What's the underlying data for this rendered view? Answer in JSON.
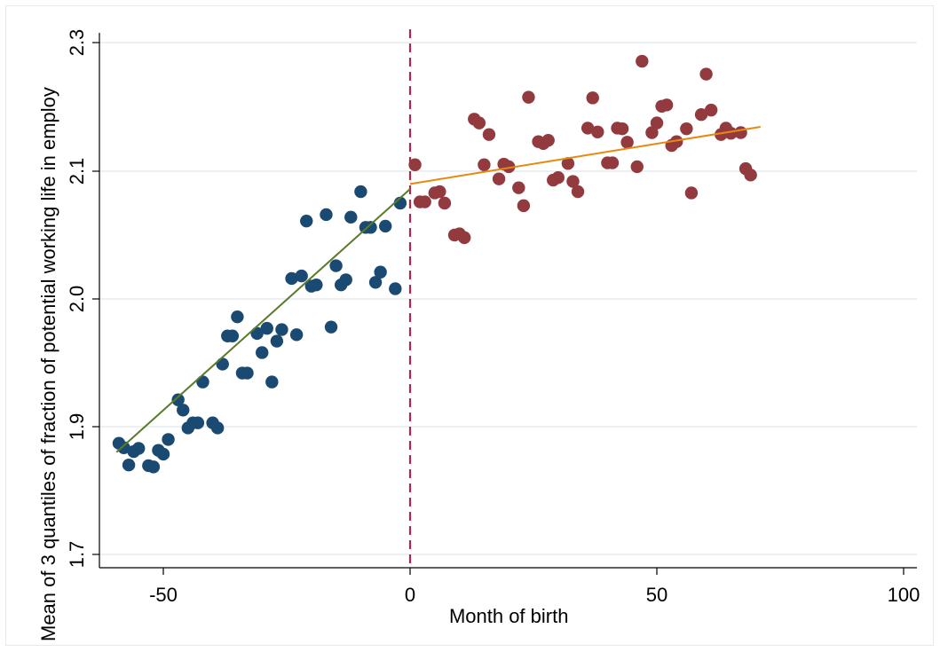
{
  "chart_data": {
    "type": "scatter",
    "title": "",
    "xlabel": "Month of birth",
    "ylabel": "Mean of 3 quantiles of fraction of potential working life in employ",
    "xlim": [
      -63,
      102
    ],
    "ylim": [
      1.69,
      2.3
    ],
    "x_ticks": [
      -50,
      0,
      50,
      100
    ],
    "y_ticks": [
      1.7,
      1.9,
      2.0,
      2.1,
      2.3
    ],
    "x_tick_labels": [
      "-50",
      "0",
      "50",
      "100"
    ],
    "y_tick_labels": [
      "1.7",
      "1.9",
      "2.0",
      "2.1",
      "2.3"
    ],
    "grid": true,
    "cutoff": 0,
    "colors": {
      "left_points": "#1a4a72",
      "right_points": "#923a3e",
      "left_fit": "#5a7a2c",
      "right_fit": "#e8890f",
      "cutoff_line": "#b0264c",
      "grid": "#e4ecf0"
    },
    "series": [
      {
        "points": [
          [
            -59,
            1.874
          ],
          [
            -58,
            1.867
          ],
          [
            -57,
            1.84
          ],
          [
            -56,
            1.861
          ],
          [
            -55,
            1.866
          ],
          [
            -53,
            1.839
          ],
          [
            -52,
            1.837
          ],
          [
            -51,
            1.863
          ],
          [
            -50,
            1.857
          ],
          [
            -49,
            1.88
          ],
          [
            -47,
            1.921
          ],
          [
            -46,
            1.913
          ],
          [
            -45,
            1.898
          ],
          [
            -44,
            1.903
          ],
          [
            -43,
            1.903
          ],
          [
            -42,
            1.935
          ],
          [
            -40,
            1.903
          ],
          [
            -39,
            1.898
          ],
          [
            -38,
            1.949
          ],
          [
            -37,
            1.971
          ],
          [
            -36,
            1.971
          ],
          [
            -35,
            1.986
          ],
          [
            -34,
            1.942
          ],
          [
            -33,
            1.942
          ],
          [
            -31,
            1.973
          ],
          [
            -30,
            1.958
          ],
          [
            -29,
            1.977
          ],
          [
            -28,
            1.935
          ],
          [
            -27,
            1.967
          ],
          [
            -26,
            1.976
          ],
          [
            -24,
            2.016
          ],
          [
            -23,
            1.972
          ],
          [
            -22,
            2.018
          ],
          [
            -21,
            2.061
          ],
          [
            -20,
            2.01
          ],
          [
            -19,
            2.011
          ],
          [
            -17,
            2.066
          ],
          [
            -16,
            1.978
          ],
          [
            -15,
            2.026
          ],
          [
            -14,
            2.011
          ],
          [
            -13,
            2.015
          ],
          [
            -12,
            2.064
          ],
          [
            -10,
            2.084
          ],
          [
            -9,
            2.056
          ],
          [
            -8,
            2.056
          ],
          [
            -7,
            2.013
          ],
          [
            -6,
            2.021
          ],
          [
            -5,
            2.057
          ],
          [
            -3,
            2.008
          ],
          [
            -2,
            2.075
          ]
        ],
        "fit": [
          [
            -59.5,
            1.86
          ],
          [
            0,
            2.086
          ]
        ]
      },
      {
        "points": [
          [
            1,
            2.11
          ],
          [
            2,
            2.076
          ],
          [
            3,
            2.076
          ],
          [
            5,
            2.083
          ],
          [
            6,
            2.084
          ],
          [
            7,
            2.075
          ],
          [
            9,
            2.05
          ],
          [
            10,
            2.051
          ],
          [
            11,
            2.048
          ],
          [
            13,
            2.181
          ],
          [
            14,
            2.175
          ],
          [
            15,
            2.11
          ],
          [
            16,
            2.157
          ],
          [
            18,
            2.094
          ],
          [
            19,
            2.111
          ],
          [
            20,
            2.107
          ],
          [
            22,
            2.087
          ],
          [
            23,
            2.073
          ],
          [
            24,
            2.215
          ],
          [
            26,
            2.146
          ],
          [
            27,
            2.143
          ],
          [
            28,
            2.148
          ],
          [
            29,
            2.093
          ],
          [
            30,
            2.095
          ],
          [
            32,
            2.112
          ],
          [
            33,
            2.092
          ],
          [
            34,
            2.084
          ],
          [
            36,
            2.167
          ],
          [
            37,
            2.214
          ],
          [
            38,
            2.161
          ],
          [
            40,
            2.113
          ],
          [
            41,
            2.113
          ],
          [
            42,
            2.167
          ],
          [
            43,
            2.166
          ],
          [
            44,
            2.145
          ],
          [
            46,
            2.107
          ],
          [
            47,
            2.271
          ],
          [
            49,
            2.16
          ],
          [
            50,
            2.175
          ],
          [
            51,
            2.201
          ],
          [
            52,
            2.203
          ],
          [
            53,
            2.14
          ],
          [
            54,
            2.146
          ],
          [
            56,
            2.166
          ],
          [
            57,
            2.083
          ],
          [
            59,
            2.188
          ],
          [
            60,
            2.251
          ],
          [
            61,
            2.195
          ],
          [
            63,
            2.157
          ],
          [
            64,
            2.167
          ],
          [
            65,
            2.159
          ],
          [
            67,
            2.16
          ],
          [
            68,
            2.104
          ],
          [
            69,
            2.097
          ]
        ],
        "fit": [
          [
            0,
            2.09
          ],
          [
            71,
            2.169
          ]
        ]
      }
    ]
  }
}
